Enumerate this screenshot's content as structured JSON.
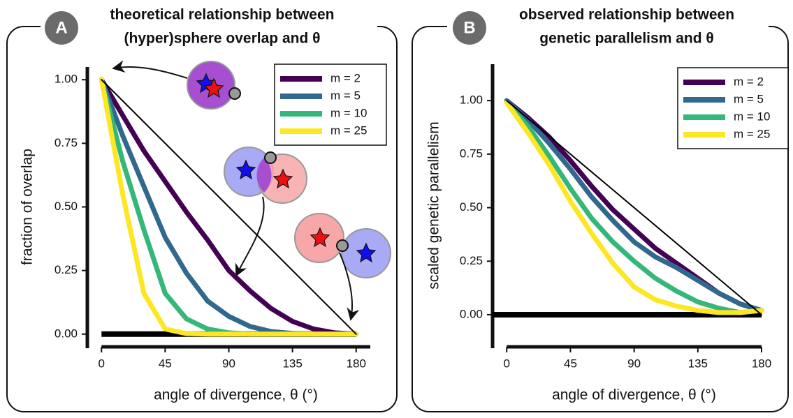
{
  "chart_data": [
    {
      "type": "line",
      "panel_label": "A",
      "title": [
        "theoretical relationship between",
        "(hyper)sphere overlap and θ"
      ],
      "x_label": "angle of divergence, θ (°)",
      "y_label": "fraction of overlap",
      "xlim": [
        -10,
        190
      ],
      "ylim": [
        -0.05,
        1.05
      ],
      "xticks": [
        0,
        45,
        90,
        135,
        180
      ],
      "yticks": [
        {
          "value": 0,
          "label": "0.00"
        },
        {
          "value": 0.25,
          "label": "0.25"
        },
        {
          "value": 0.5,
          "label": "0.50"
        },
        {
          "value": 0.75,
          "label": "0.75"
        },
        {
          "value": 1,
          "label": "1.00"
        }
      ],
      "x": [
        0,
        15,
        30,
        45,
        60,
        75,
        90,
        105,
        120,
        135,
        150,
        165,
        180
      ],
      "series": [
        {
          "name": "m = 2",
          "color": "#440154",
          "values": [
            1,
            0.86,
            0.72,
            0.6,
            0.48,
            0.37,
            0.25,
            0.17,
            0.1,
            0.05,
            0.02,
            0.005,
            0
          ]
        },
        {
          "name": "m = 5",
          "color": "#31688e",
          "values": [
            1,
            0.78,
            0.58,
            0.38,
            0.24,
            0.13,
            0.07,
            0.03,
            0.01,
            0.003,
            0,
            0,
            0
          ]
        },
        {
          "name": "m = 10",
          "color": "#35b779",
          "values": [
            1,
            0.68,
            0.41,
            0.16,
            0.06,
            0.02,
            0.005,
            0,
            0,
            0,
            0,
            0,
            0
          ]
        },
        {
          "name": "m = 25",
          "color": "#fde725",
          "values": [
            1,
            0.55,
            0.16,
            0.02,
            0.002,
            0,
            0,
            0,
            0,
            0,
            0,
            0,
            0
          ]
        }
      ],
      "reference_line": {
        "x": [
          0,
          180
        ],
        "values": [
          1,
          0
        ]
      },
      "zero_line": {
        "x": [
          0,
          180
        ],
        "values": [
          0,
          0
        ]
      },
      "legend": "upper right"
    },
    {
      "type": "line",
      "panel_label": "B",
      "title": [
        "observed relationship between",
        "genetic parallelism and θ"
      ],
      "x_label": "angle of divergence, θ (°)",
      "y_label": "scaled genetic parallelism",
      "xlim": [
        -10,
        180
      ],
      "ylim": [
        -0.15,
        1.17
      ],
      "xticks": [
        0,
        45,
        90,
        135,
        180
      ],
      "yticks": [
        {
          "value": 0,
          "label": "0.00"
        },
        {
          "value": 0.25,
          "label": "0.25"
        },
        {
          "value": 0.5,
          "label": "0.50"
        },
        {
          "value": 0.75,
          "label": "0.75"
        },
        {
          "value": 1,
          "label": "1.00"
        }
      ],
      "x": [
        0,
        15,
        30,
        45,
        60,
        75,
        90,
        105,
        120,
        135,
        150,
        165,
        180
      ],
      "series": [
        {
          "name": "m = 2",
          "color": "#440154",
          "values": [
            1,
            0.92,
            0.83,
            0.72,
            0.6,
            0.49,
            0.4,
            0.31,
            0.24,
            0.17,
            0.1,
            0.05,
            0.02
          ]
        },
        {
          "name": "m = 5",
          "color": "#31688e",
          "values": [
            1,
            0.91,
            0.8,
            0.68,
            0.55,
            0.44,
            0.34,
            0.27,
            0.22,
            0.16,
            0.1,
            0.05,
            0.02
          ]
        },
        {
          "name": "m = 10",
          "color": "#35b779",
          "values": [
            0.99,
            0.88,
            0.74,
            0.59,
            0.45,
            0.34,
            0.25,
            0.17,
            0.11,
            0.06,
            0.03,
            0.01,
            0.02
          ]
        },
        {
          "name": "m = 25",
          "color": "#fde725",
          "values": [
            0.99,
            0.85,
            0.7,
            0.53,
            0.38,
            0.24,
            0.13,
            0.07,
            0.04,
            0.02,
            0.01,
            0.01,
            0.02
          ]
        }
      ],
      "reference_line": {
        "x": [
          0,
          180
        ],
        "values": [
          1,
          0
        ]
      },
      "zero_line": {
        "x": [
          -10,
          180
        ],
        "values": [
          0,
          0
        ]
      },
      "legend": "upper right"
    }
  ]
}
